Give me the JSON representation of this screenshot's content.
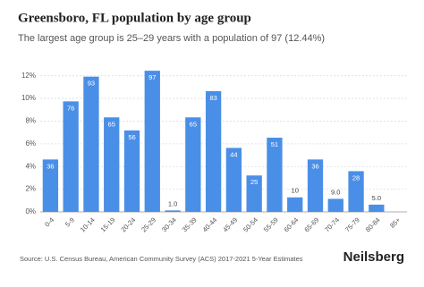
{
  "chart_data": {
    "type": "bar",
    "title": "Greensboro, FL population by age group",
    "subtitle": "The largest age group is 25–29 years with a population of 97 (12.44%)",
    "categories": [
      "0-4",
      "5-9",
      "10-14",
      "15-19",
      "20-24",
      "25-29",
      "30-34",
      "35-39",
      "40-44",
      "45-49",
      "50-54",
      "55-59",
      "60-64",
      "65-69",
      "70-74",
      "75-79",
      "80-84",
      "85+"
    ],
    "values": [
      4.62,
      9.74,
      11.92,
      8.33,
      7.18,
      12.44,
      0.13,
      8.33,
      10.64,
      5.64,
      3.21,
      6.54,
      1.28,
      4.62,
      1.15,
      3.59,
      0.64,
      0
    ],
    "populations": [
      36,
      76,
      93,
      65,
      56,
      97,
      1.0,
      65,
      83,
      44,
      25,
      51,
      10,
      36,
      9.0,
      28,
      5.0,
      null
    ],
    "value_labels": [
      "36",
      "76",
      "93",
      "65",
      "56",
      "97",
      "1.0",
      "65",
      "83",
      "44",
      "25",
      "51",
      "10",
      "36",
      "9.0",
      "28",
      "5.0",
      null
    ],
    "color": "#4a8fe7",
    "ylim": [
      0,
      13
    ],
    "yticks": [
      {
        "value": 0,
        "label": "0%"
      },
      {
        "value": 2,
        "label": "2%"
      },
      {
        "value": 4,
        "label": "4%"
      },
      {
        "value": 6,
        "label": "6%"
      },
      {
        "value": 8,
        "label": "8%"
      },
      {
        "value": 10,
        "label": "10%"
      },
      {
        "value": 12,
        "label": "12%"
      }
    ],
    "grid": true,
    "source": "Source: U.S. Census Bureau, American Community Survey (ACS) 2017-2021 5-Year Estimates",
    "brand": "Neilsberg"
  }
}
